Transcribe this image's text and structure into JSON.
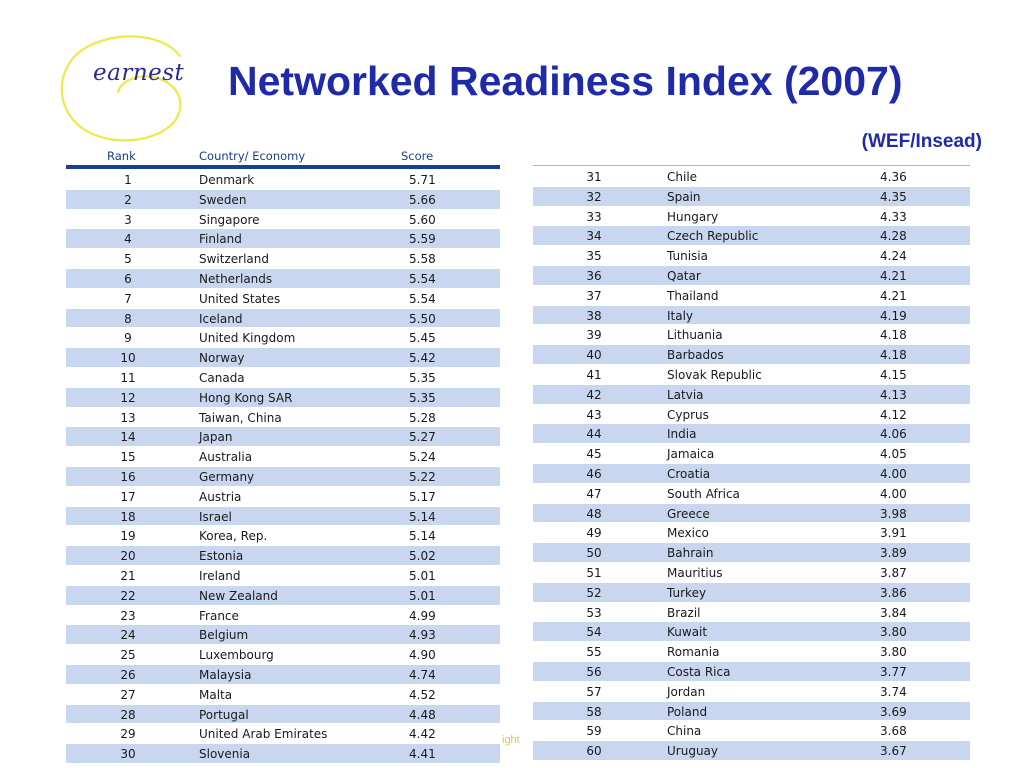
{
  "brand": {
    "logo_text": "earnest",
    "accent": "#f0e84a",
    "title_color": "#1f2aa8"
  },
  "slide": {
    "title": "Networked Readiness Index (2007)",
    "source": "(WEF/Insead)",
    "footnote": "ight"
  },
  "table": {
    "columns": {
      "rank": "Rank",
      "country": "Country/ Economy",
      "score": "Score"
    },
    "row_colors": {
      "alt": "#c8d7ef",
      "plain": "#ffffff",
      "rule": "#1a3f8e"
    },
    "rows": [
      {
        "rank": "1",
        "country": "Denmark",
        "score": "5.71"
      },
      {
        "rank": "2",
        "country": "Sweden",
        "score": "5.66"
      },
      {
        "rank": "3",
        "country": "Singapore",
        "score": "5.60"
      },
      {
        "rank": "4",
        "country": "Finland",
        "score": "5.59"
      },
      {
        "rank": "5",
        "country": "Switzerland",
        "score": "5.58"
      },
      {
        "rank": "6",
        "country": "Netherlands",
        "score": "5.54"
      },
      {
        "rank": "7",
        "country": "United States",
        "score": "5.54"
      },
      {
        "rank": "8",
        "country": "Iceland",
        "score": "5.50"
      },
      {
        "rank": "9",
        "country": "United Kingdom",
        "score": "5.45"
      },
      {
        "rank": "10",
        "country": "Norway",
        "score": "5.42"
      },
      {
        "rank": "11",
        "country": "Canada",
        "score": "5.35"
      },
      {
        "rank": "12",
        "country": "Hong Kong SAR",
        "score": "5.35"
      },
      {
        "rank": "13",
        "country": "Taiwan, China",
        "score": "5.28"
      },
      {
        "rank": "14",
        "country": "Japan",
        "score": "5.27"
      },
      {
        "rank": "15",
        "country": "Australia",
        "score": "5.24"
      },
      {
        "rank": "16",
        "country": "Germany",
        "score": "5.22"
      },
      {
        "rank": "17",
        "country": "Austria",
        "score": "5.17"
      },
      {
        "rank": "18",
        "country": "Israel",
        "score": "5.14"
      },
      {
        "rank": "19",
        "country": "Korea, Rep.",
        "score": "5.14"
      },
      {
        "rank": "20",
        "country": "Estonia",
        "score": "5.02"
      },
      {
        "rank": "21",
        "country": "Ireland",
        "score": "5.01"
      },
      {
        "rank": "22",
        "country": "New Zealand",
        "score": "5.01"
      },
      {
        "rank": "23",
        "country": "France",
        "score": "4.99"
      },
      {
        "rank": "24",
        "country": "Belgium",
        "score": "4.93"
      },
      {
        "rank": "25",
        "country": "Luxembourg",
        "score": "4.90"
      },
      {
        "rank": "26",
        "country": "Malaysia",
        "score": "4.74"
      },
      {
        "rank": "27",
        "country": "Malta",
        "score": "4.52"
      },
      {
        "rank": "28",
        "country": "Portugal",
        "score": "4.48"
      },
      {
        "rank": "29",
        "country": "United Arab Emirates",
        "score": "4.42"
      },
      {
        "rank": "30",
        "country": "Slovenia",
        "score": "4.41"
      },
      {
        "rank": "31",
        "country": "Chile",
        "score": "4.36"
      },
      {
        "rank": "32",
        "country": "Spain",
        "score": "4.35"
      },
      {
        "rank": "33",
        "country": "Hungary",
        "score": "4.33"
      },
      {
        "rank": "34",
        "country": "Czech Republic",
        "score": "4.28"
      },
      {
        "rank": "35",
        "country": "Tunisia",
        "score": "4.24"
      },
      {
        "rank": "36",
        "country": "Qatar",
        "score": "4.21"
      },
      {
        "rank": "37",
        "country": "Thailand",
        "score": "4.21"
      },
      {
        "rank": "38",
        "country": "Italy",
        "score": "4.19"
      },
      {
        "rank": "39",
        "country": "Lithuania",
        "score": "4.18"
      },
      {
        "rank": "40",
        "country": "Barbados",
        "score": "4.18"
      },
      {
        "rank": "41",
        "country": "Slovak Republic",
        "score": "4.15"
      },
      {
        "rank": "42",
        "country": "Latvia",
        "score": "4.13"
      },
      {
        "rank": "43",
        "country": "Cyprus",
        "score": "4.12"
      },
      {
        "rank": "44",
        "country": "India",
        "score": "4.06"
      },
      {
        "rank": "45",
        "country": "Jamaica",
        "score": "4.05"
      },
      {
        "rank": "46",
        "country": "Croatia",
        "score": "4.00"
      },
      {
        "rank": "47",
        "country": "South Africa",
        "score": "4.00"
      },
      {
        "rank": "48",
        "country": "Greece",
        "score": "3.98"
      },
      {
        "rank": "49",
        "country": "Mexico",
        "score": "3.91"
      },
      {
        "rank": "50",
        "country": "Bahrain",
        "score": "3.89"
      },
      {
        "rank": "51",
        "country": "Mauritius",
        "score": "3.87"
      },
      {
        "rank": "52",
        "country": "Turkey",
        "score": "3.86"
      },
      {
        "rank": "53",
        "country": "Brazil",
        "score": "3.84"
      },
      {
        "rank": "54",
        "country": "Kuwait",
        "score": "3.80"
      },
      {
        "rank": "55",
        "country": "Romania",
        "score": "3.80"
      },
      {
        "rank": "56",
        "country": "Costa Rica",
        "score": "3.77"
      },
      {
        "rank": "57",
        "country": "Jordan",
        "score": "3.74"
      },
      {
        "rank": "58",
        "country": "Poland",
        "score": "3.69"
      },
      {
        "rank": "59",
        "country": "China",
        "score": "3.68"
      },
      {
        "rank": "60",
        "country": "Uruguay",
        "score": "3.67"
      }
    ]
  }
}
